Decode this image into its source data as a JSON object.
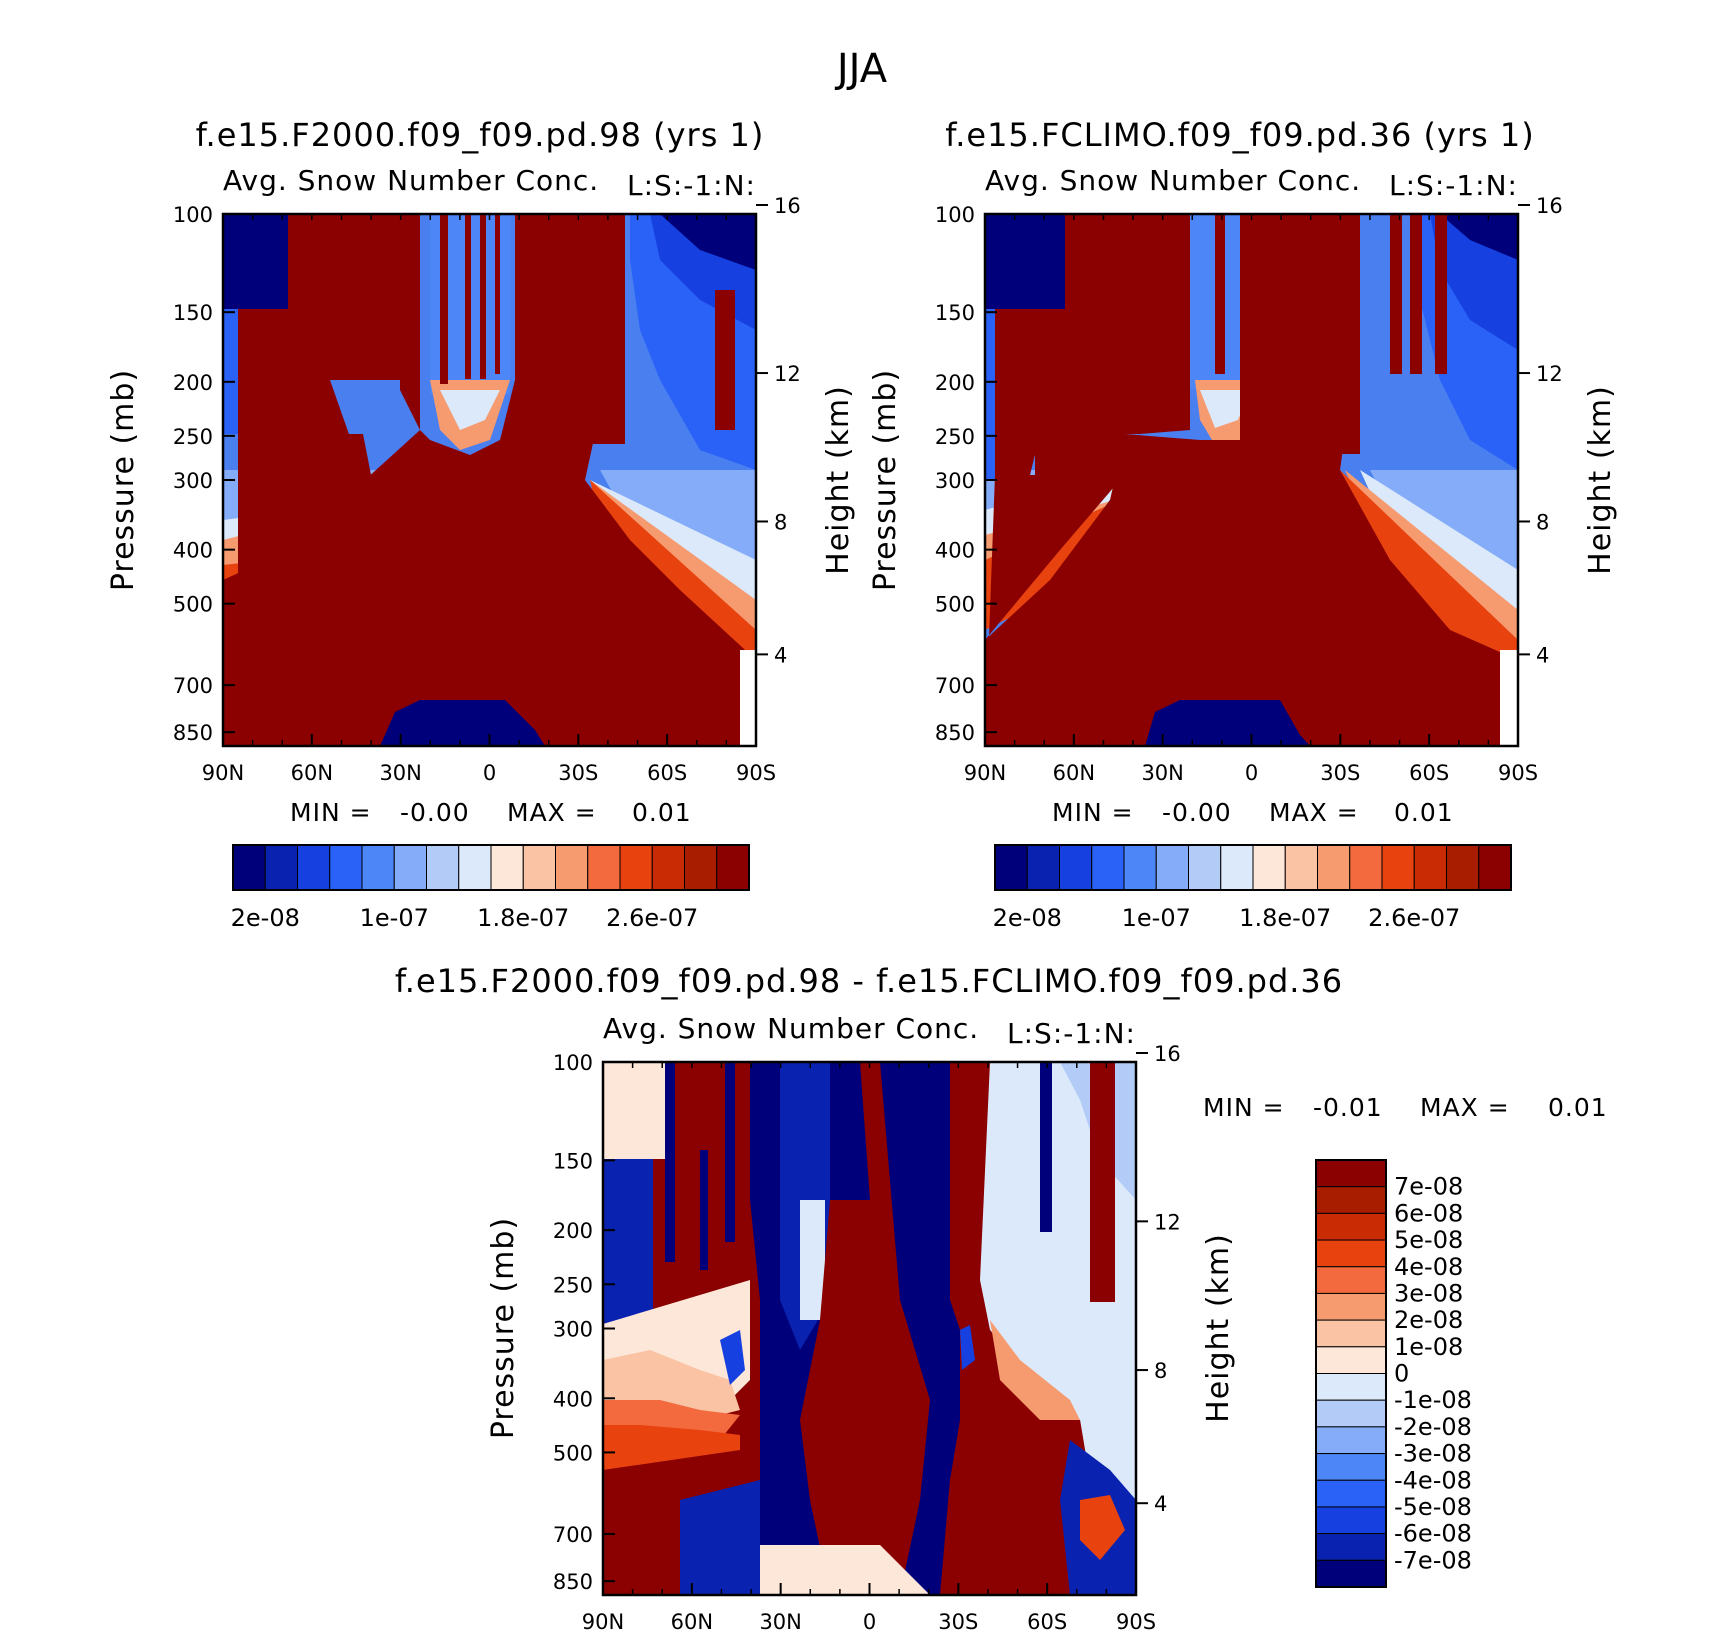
{
  "figure_title": "JJA",
  "colors": {
    "seq": [
      "#00007a",
      "#0a22b0",
      "#1641e0",
      "#2a62f8",
      "#4d86f6",
      "#84acf8",
      "#b3ccf7",
      "#dce9fa",
      "#fde7d8",
      "#f9c3a4",
      "#f69a6f",
      "#f36a3e",
      "#e8420f",
      "#c92c05",
      "#a81d00",
      "#8b0000"
    ],
    "diff": [
      "#00007a",
      "#0a22b0",
      "#1641e0",
      "#2a62f8",
      "#4d86f6",
      "#84acf8",
      "#b3ccf7",
      "#dce9fa",
      "#fde7d8",
      "#f9c3a4",
      "#f69a6f",
      "#f36a3e",
      "#e8420f",
      "#c92c05",
      "#a81d00",
      "#8b0000"
    ]
  },
  "chart_data": [
    {
      "id": "panel-left",
      "type": "heatmap",
      "title": "f.e15.F2000.f09_f09.pd.98 (yrs 1)",
      "subtitle": "Avg. Snow Number Conc.",
      "units_label": "L:S:-1:N:",
      "ylabel": "Pressure (mb)",
      "y2label": "Height (km)",
      "x_ticks": [
        "90N",
        "60N",
        "30N",
        "0",
        "30S",
        "60S",
        "90S"
      ],
      "y_ticks": [
        "100",
        "150",
        "200",
        "250",
        "300",
        "400",
        "500",
        "700",
        "850"
      ],
      "y_range_mb": [
        100,
        900
      ],
      "y2_ticks": [
        "16",
        "12",
        "8",
        "4"
      ],
      "stats": {
        "min_label": "MIN =",
        "min": "-0.00",
        "max_label": "MAX =",
        "max": "0.01"
      },
      "colorbar_labels": [
        "2e-08",
        "1e-07",
        "1.8e-07",
        "2.6e-07"
      ]
    },
    {
      "id": "panel-right",
      "type": "heatmap",
      "title": "f.e15.FCLIMO.f09_f09.pd.36 (yrs 1)",
      "subtitle": "Avg. Snow Number Conc.",
      "units_label": "L:S:-1:N:",
      "ylabel": "Pressure (mb)",
      "y2label": "Height (km)",
      "x_ticks": [
        "90N",
        "60N",
        "30N",
        "0",
        "30S",
        "60S",
        "90S"
      ],
      "y_ticks": [
        "100",
        "150",
        "200",
        "250",
        "300",
        "400",
        "500",
        "700",
        "850"
      ],
      "y_range_mb": [
        100,
        900
      ],
      "y2_ticks": [
        "16",
        "12",
        "8",
        "4"
      ],
      "stats": {
        "min_label": "MIN =",
        "min": "-0.00",
        "max_label": "MAX =",
        "max": "0.01"
      },
      "colorbar_labels": [
        "2e-08",
        "1e-07",
        "1.8e-07",
        "2.6e-07"
      ]
    },
    {
      "id": "panel-diff",
      "type": "heatmap",
      "title": "f.e15.F2000.f09_f09.pd.98 - f.e15.FCLIMO.f09_f09.pd.36",
      "subtitle": "Avg. Snow Number Conc.",
      "units_label": "L:S:-1:N:",
      "ylabel": "Pressure (mb)",
      "y2label": "Height (km)",
      "x_ticks": [
        "90N",
        "60N",
        "30N",
        "0",
        "30S",
        "60S",
        "90S"
      ],
      "y_ticks": [
        "100",
        "150",
        "200",
        "250",
        "300",
        "400",
        "500",
        "700",
        "850"
      ],
      "y_range_mb": [
        100,
        900
      ],
      "y2_ticks": [
        "16",
        "12",
        "8",
        "4"
      ],
      "stats": {
        "min_label": "MIN =",
        "min": "-0.01",
        "max_label": "MAX =",
        "max": "0.01"
      },
      "colorbar_labels": [
        "7e-08",
        "6e-08",
        "5e-08",
        "4e-08",
        "3e-08",
        "2e-08",
        "1e-08",
        "0",
        "-1e-08",
        "-2e-08",
        "-3e-08",
        "-4e-08",
        "-5e-08",
        "-6e-08",
        "-7e-08"
      ]
    }
  ]
}
